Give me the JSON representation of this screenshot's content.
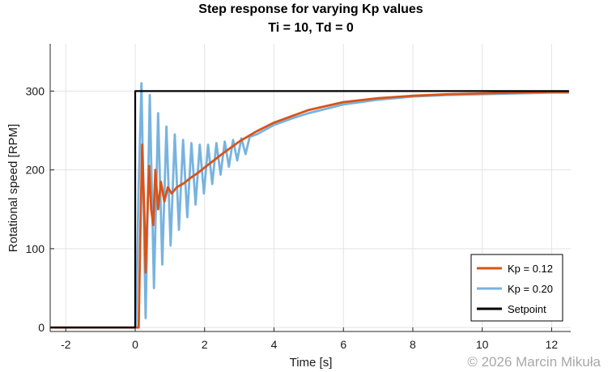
{
  "chart_data": {
    "type": "line",
    "title": "Step response for varying Kp values",
    "subtitle": "Ti = 10, Td = 0",
    "xlabel": "Time [s]",
    "ylabel": "Rotational speed [RPM]",
    "xlim": [
      -2.45,
      12.55
    ],
    "ylim": [
      -5,
      360
    ],
    "xticks": [
      -2,
      0,
      2,
      4,
      6,
      8,
      10,
      12
    ],
    "yticks": [
      0,
      100,
      200,
      300
    ],
    "xtick_labels": [
      "-2",
      "0",
      "2",
      "4",
      "6",
      "8",
      "10",
      "12"
    ],
    "ytick_labels": [
      "0",
      "100",
      "200",
      "300"
    ],
    "grid": true,
    "legend_position": "bottom-right",
    "series": [
      {
        "name": "Kp = 0.12",
        "color": "#d95319",
        "x": [
          -2.45,
          0.0,
          0.1,
          0.14,
          0.2,
          0.26,
          0.3,
          0.34,
          0.4,
          0.46,
          0.52,
          0.58,
          0.66,
          0.74,
          0.84,
          0.94,
          1.05,
          1.2,
          1.4,
          1.6,
          1.8,
          2.0,
          2.5,
          3.0,
          3.5,
          4.0,
          5.0,
          6.0,
          7.0,
          8.0,
          9.0,
          10.0,
          11.0,
          12.0,
          12.5
        ],
        "y": [
          0,
          0,
          0,
          100,
          232,
          150,
          70,
          130,
          205,
          150,
          130,
          200,
          150,
          185,
          160,
          178,
          170,
          178,
          183,
          190,
          196,
          203,
          220,
          236,
          249,
          260,
          276,
          286,
          291,
          294,
          296,
          297,
          298,
          299,
          299
        ]
      },
      {
        "name": "Kp = 0.20",
        "color": "#77b3df",
        "x": [
          -2.45,
          0.0,
          0.02,
          0.1,
          0.18,
          0.3,
          0.42,
          0.54,
          0.66,
          0.78,
          0.9,
          1.02,
          1.14,
          1.26,
          1.38,
          1.5,
          1.62,
          1.74,
          1.86,
          1.98,
          2.1,
          2.22,
          2.34,
          2.46,
          2.58,
          2.7,
          2.82,
          2.94,
          3.06,
          3.18,
          3.3,
          3.5,
          4.0,
          4.5,
          5.0,
          6.0,
          7.0,
          8.0,
          9.0,
          10.0,
          11.0,
          12.0,
          12.5
        ],
        "y": [
          0,
          0,
          0,
          180,
          310,
          12,
          295,
          50,
          272,
          80,
          255,
          104,
          245,
          124,
          238,
          140,
          234,
          156,
          232,
          170,
          232,
          182,
          234,
          194,
          236,
          204,
          238,
          212,
          240,
          220,
          242,
          245,
          257,
          265,
          272,
          283,
          289,
          293,
          295,
          296,
          297,
          298,
          298
        ]
      },
      {
        "name": "Setpoint",
        "color": "#000000",
        "x": [
          -2.45,
          0.0,
          0.0,
          12.5
        ],
        "y": [
          0,
          0,
          300,
          300
        ]
      }
    ]
  },
  "watermark": "© 2026 Marcin Mikuła"
}
